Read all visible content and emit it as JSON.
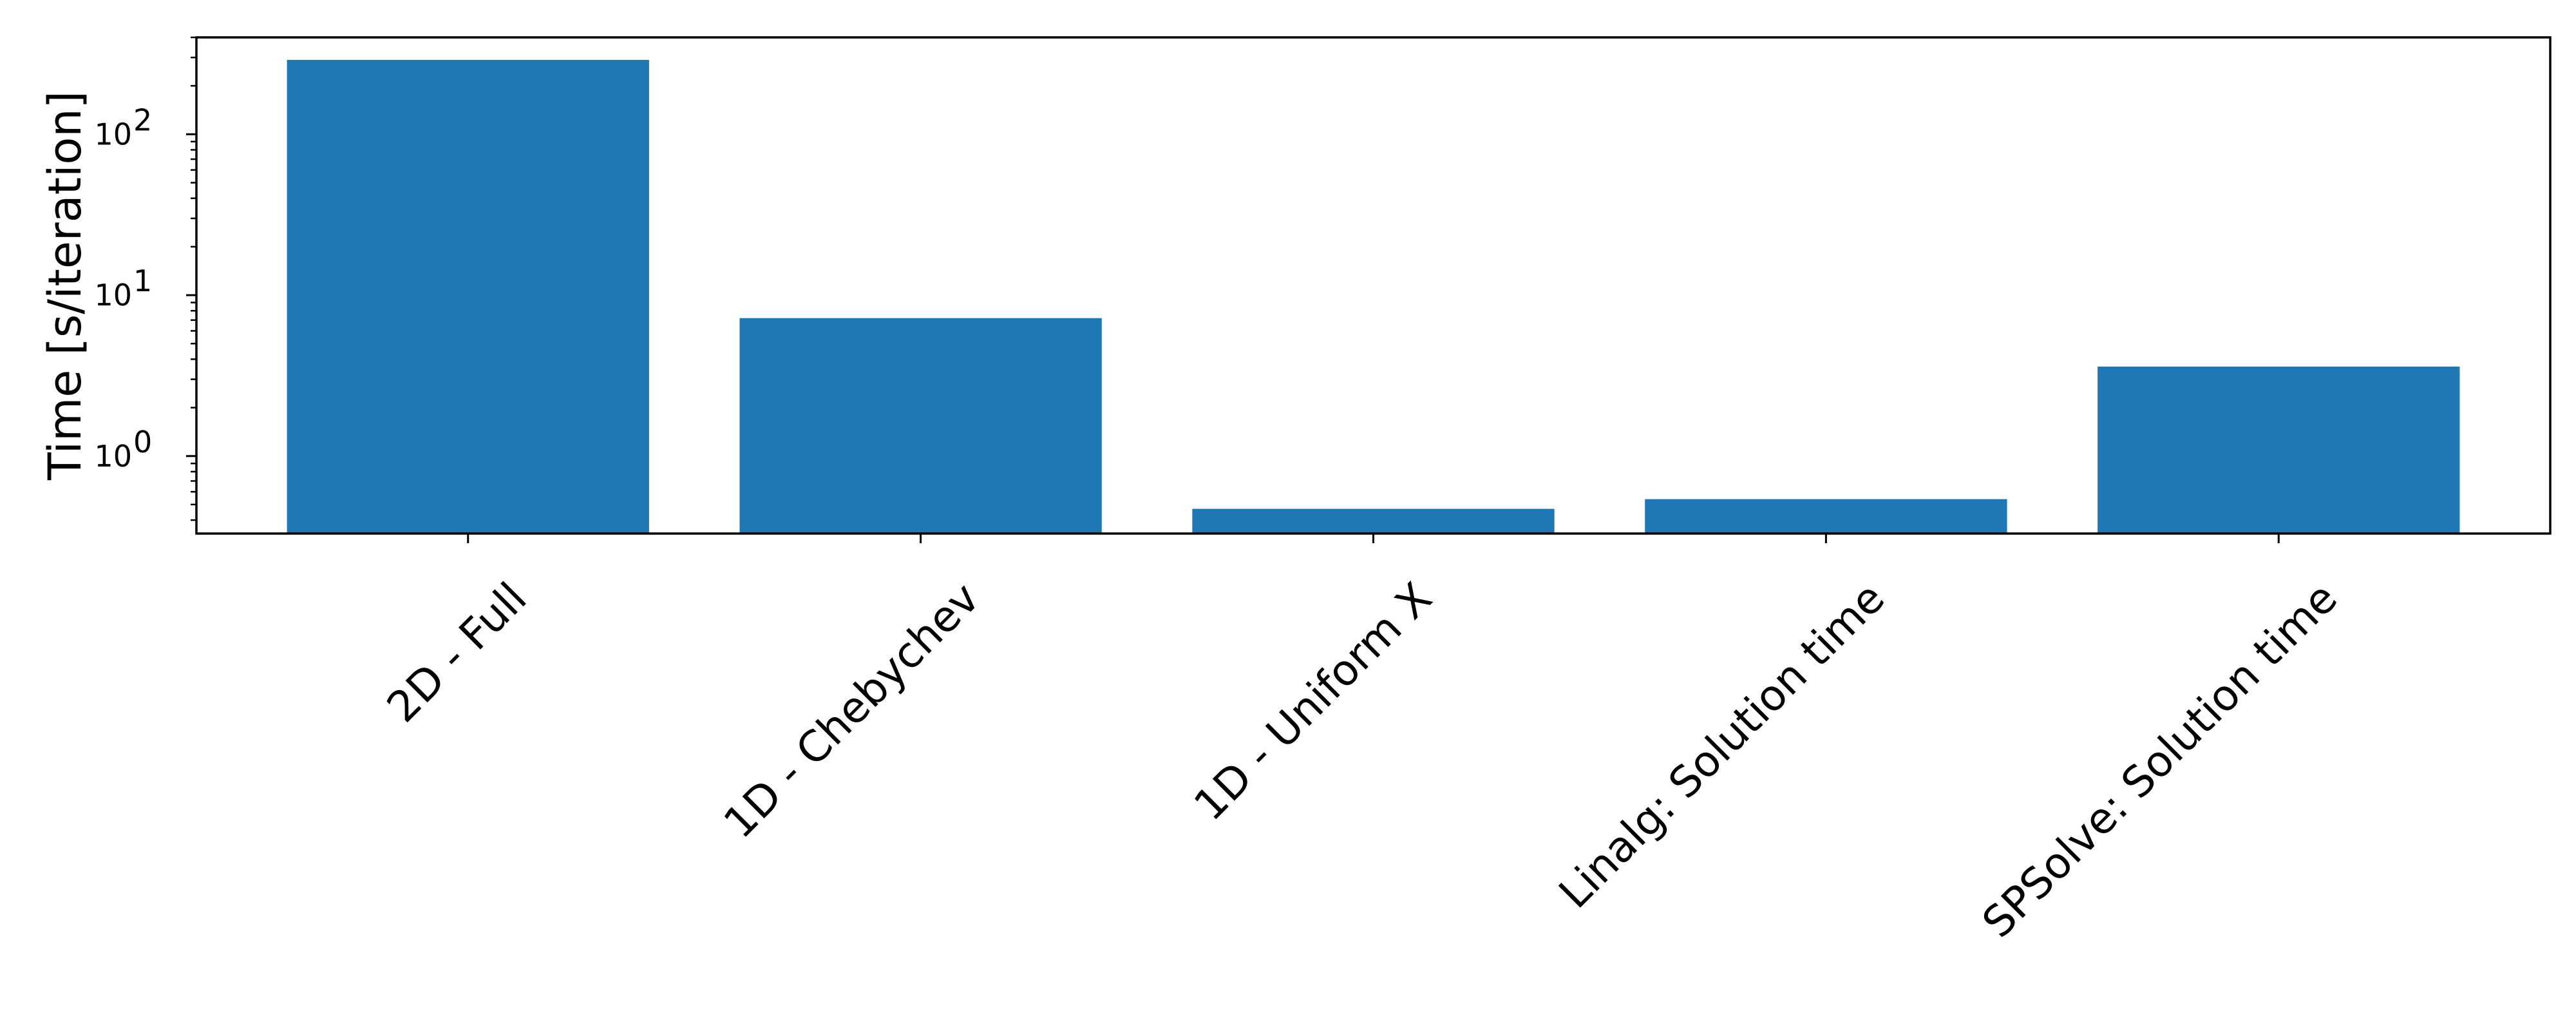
{
  "chart_data": {
    "type": "bar",
    "categories": [
      "2D - Full",
      "1D - Chebychev",
      "1D - Uniform X",
      "Linalg: Solution time",
      "SPSolve: Solution time"
    ],
    "values": [
      290,
      7.2,
      0.47,
      0.54,
      3.6
    ],
    "title": "",
    "xlabel": "",
    "ylabel": "Time [s/iteration]",
    "yscale": "log",
    "ylim": [
      0.33,
      400
    ],
    "yticks": [
      {
        "value": 1,
        "base": "10",
        "exp": "0"
      },
      {
        "value": 10,
        "base": "10",
        "exp": "1"
      },
      {
        "value": 100,
        "base": "10",
        "exp": "2"
      }
    ],
    "grid": false,
    "legend": "none",
    "bar_color": "#1f77b4"
  }
}
